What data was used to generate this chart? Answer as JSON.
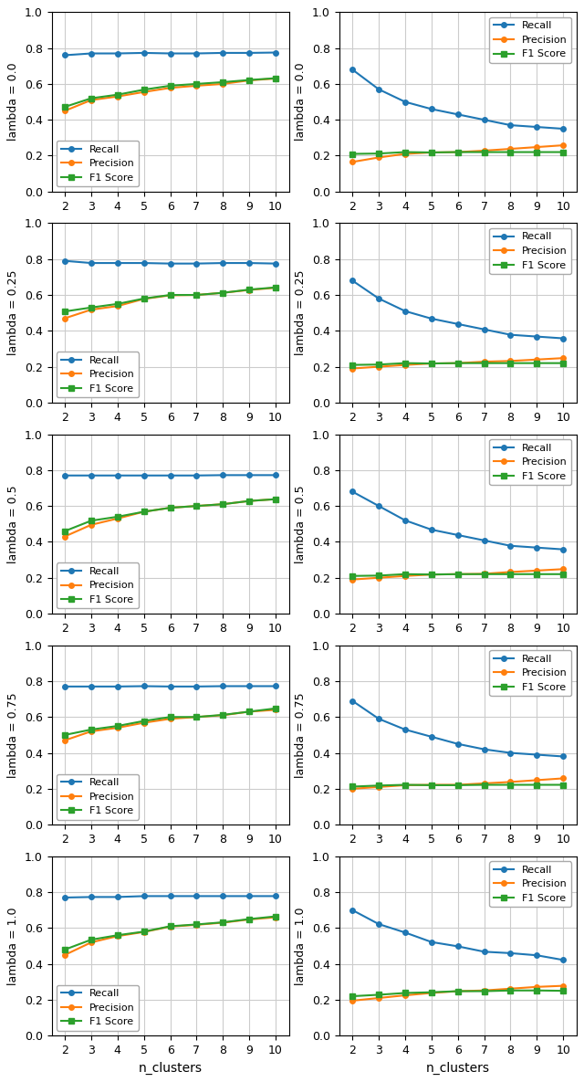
{
  "x": [
    2,
    3,
    4,
    5,
    6,
    7,
    8,
    9,
    10
  ],
  "left_panels": {
    "recall": [
      [
        0.76,
        0.77,
        0.77,
        0.773,
        0.77,
        0.77,
        0.773,
        0.773,
        0.775
      ],
      [
        0.79,
        0.778,
        0.778,
        0.778,
        0.775,
        0.775,
        0.778,
        0.778,
        0.775
      ],
      [
        0.77,
        0.77,
        0.77,
        0.77,
        0.77,
        0.77,
        0.772,
        0.772,
        0.772
      ],
      [
        0.77,
        0.77,
        0.77,
        0.772,
        0.77,
        0.77,
        0.772,
        0.772,
        0.772
      ],
      [
        0.77,
        0.773,
        0.773,
        0.778,
        0.778,
        0.778,
        0.778,
        0.778,
        0.778
      ]
    ],
    "precision": [
      [
        0.45,
        0.51,
        0.53,
        0.555,
        0.578,
        0.59,
        0.6,
        0.62,
        0.63
      ],
      [
        0.47,
        0.518,
        0.538,
        0.578,
        0.598,
        0.6,
        0.612,
        0.628,
        0.64
      ],
      [
        0.43,
        0.495,
        0.53,
        0.568,
        0.59,
        0.6,
        0.61,
        0.628,
        0.638
      ],
      [
        0.47,
        0.52,
        0.54,
        0.568,
        0.59,
        0.6,
        0.61,
        0.63,
        0.64
      ],
      [
        0.45,
        0.52,
        0.555,
        0.578,
        0.608,
        0.618,
        0.63,
        0.648,
        0.66
      ]
    ],
    "f1": [
      [
        0.472,
        0.52,
        0.54,
        0.568,
        0.59,
        0.6,
        0.61,
        0.622,
        0.632
      ],
      [
        0.508,
        0.53,
        0.55,
        0.58,
        0.6,
        0.6,
        0.612,
        0.63,
        0.642
      ],
      [
        0.46,
        0.518,
        0.54,
        0.568,
        0.59,
        0.6,
        0.61,
        0.628,
        0.638
      ],
      [
        0.5,
        0.53,
        0.55,
        0.578,
        0.6,
        0.6,
        0.612,
        0.63,
        0.648
      ],
      [
        0.48,
        0.535,
        0.56,
        0.58,
        0.61,
        0.62,
        0.632,
        0.65,
        0.665
      ]
    ]
  },
  "right_panels": {
    "recall": [
      [
        0.68,
        0.57,
        0.5,
        0.46,
        0.43,
        0.4,
        0.37,
        0.36,
        0.35
      ],
      [
        0.68,
        0.58,
        0.51,
        0.468,
        0.438,
        0.408,
        0.378,
        0.368,
        0.358
      ],
      [
        0.68,
        0.6,
        0.52,
        0.468,
        0.438,
        0.408,
        0.378,
        0.368,
        0.358
      ],
      [
        0.69,
        0.59,
        0.53,
        0.49,
        0.45,
        0.42,
        0.4,
        0.39,
        0.38
      ],
      [
        0.7,
        0.622,
        0.575,
        0.522,
        0.498,
        0.468,
        0.46,
        0.448,
        0.422
      ]
    ],
    "precision": [
      [
        0.165,
        0.19,
        0.21,
        0.218,
        0.22,
        0.228,
        0.238,
        0.248,
        0.258
      ],
      [
        0.19,
        0.2,
        0.21,
        0.218,
        0.22,
        0.228,
        0.232,
        0.24,
        0.248
      ],
      [
        0.19,
        0.2,
        0.21,
        0.218,
        0.22,
        0.222,
        0.232,
        0.24,
        0.248
      ],
      [
        0.2,
        0.21,
        0.22,
        0.222,
        0.222,
        0.23,
        0.238,
        0.248,
        0.258
      ],
      [
        0.195,
        0.21,
        0.225,
        0.238,
        0.248,
        0.252,
        0.262,
        0.272,
        0.278
      ]
    ],
    "f1": [
      [
        0.21,
        0.212,
        0.22,
        0.218,
        0.22,
        0.22,
        0.22,
        0.22,
        0.22
      ],
      [
        0.21,
        0.212,
        0.22,
        0.218,
        0.22,
        0.22,
        0.22,
        0.22,
        0.22
      ],
      [
        0.21,
        0.212,
        0.22,
        0.218,
        0.22,
        0.22,
        0.22,
        0.22,
        0.22
      ],
      [
        0.212,
        0.218,
        0.222,
        0.22,
        0.22,
        0.222,
        0.222,
        0.222,
        0.222
      ],
      [
        0.22,
        0.228,
        0.238,
        0.242,
        0.248,
        0.248,
        0.252,
        0.252,
        0.25
      ]
    ]
  },
  "colors": {
    "recall": "#1f77b4",
    "precision": "#ff7f0e",
    "f1": "#2ca02c"
  },
  "lambda_labels": [
    "lambda = 0.0",
    "lambda = 0.25",
    "lambda = 0.5",
    "lambda = 0.75",
    "lambda = 1.0"
  ],
  "xlabel": "n_clusters",
  "ylim": [
    0.0,
    1.0
  ],
  "yticks": [
    0.0,
    0.2,
    0.4,
    0.6,
    0.8,
    1.0
  ]
}
